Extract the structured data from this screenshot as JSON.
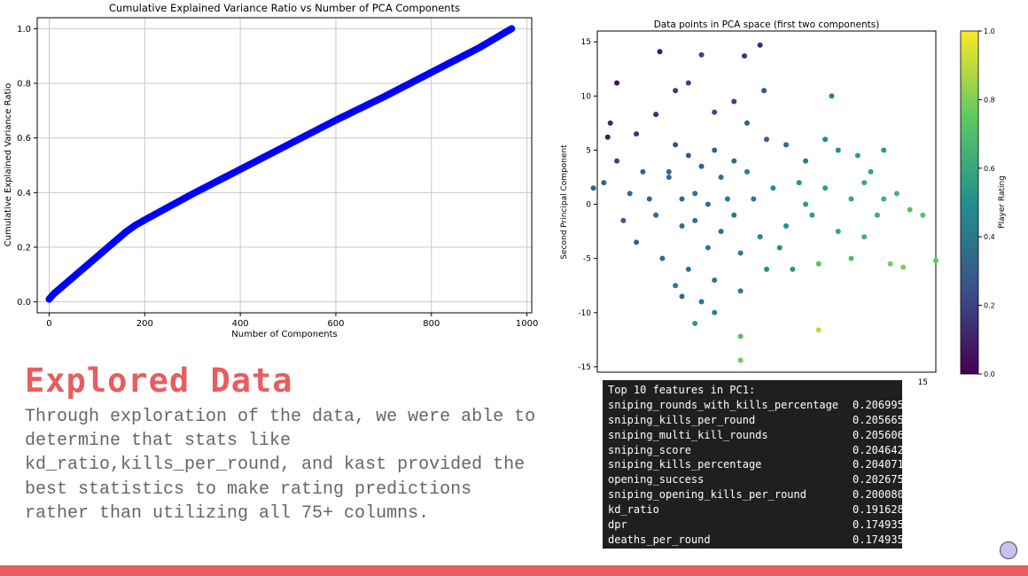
{
  "chart_data": [
    {
      "type": "line",
      "title": "Cumulative Explained Variance Ratio vs Number of PCA Components",
      "xlabel": "Number of Components",
      "ylabel": "Cumulative Explained Variance Ratio",
      "xlim": [
        -25,
        1010
      ],
      "ylim": [
        -0.04,
        1.04
      ],
      "xticks": [
        0,
        200,
        400,
        600,
        800,
        1000
      ],
      "yticks": [
        0.0,
        0.2,
        0.4,
        0.6,
        0.8,
        1.0
      ],
      "x": [
        0,
        5,
        10,
        20,
        40,
        60,
        80,
        100,
        120,
        140,
        160,
        180,
        200,
        300,
        400,
        500,
        600,
        700,
        800,
        900,
        968
      ],
      "y": [
        0.01,
        0.02,
        0.03,
        0.045,
        0.075,
        0.105,
        0.135,
        0.165,
        0.195,
        0.225,
        0.255,
        0.28,
        0.3,
        0.395,
        0.485,
        0.575,
        0.665,
        0.75,
        0.84,
        0.93,
        1.0
      ],
      "color": "#0000ff",
      "grid": true
    },
    {
      "type": "scatter",
      "title": "Data points in PCA space (first two components)",
      "xlabel": "",
      "ylabel": "Second Principal Component",
      "xlim": [
        -10,
        16
      ],
      "ylim": [
        -15.5,
        16
      ],
      "xticks": [
        15
      ],
      "yticks": [
        -15,
        -10,
        -5,
        0,
        5,
        10,
        15
      ],
      "colorbar": {
        "label": "Player Rating",
        "ticks": [
          0.0,
          0.2,
          0.4,
          0.6,
          0.8,
          1.0
        ],
        "colormap": "viridis"
      },
      "points": [
        [
          -8.5,
          11.2,
          0.05
        ],
        [
          -5.2,
          14.1,
          0.06
        ],
        [
          1.3,
          13.7,
          0.15
        ],
        [
          2.5,
          14.7,
          0.12
        ],
        [
          -9.0,
          7.5,
          0.1
        ],
        [
          -9.2,
          6.2,
          0.08
        ],
        [
          -5.5,
          8.3,
          0.12
        ],
        [
          -4.0,
          10.5,
          0.18
        ],
        [
          -3.0,
          11.2,
          0.2
        ],
        [
          -1.0,
          8.5,
          0.22
        ],
        [
          0.5,
          9.5,
          0.2
        ],
        [
          2.8,
          10.5,
          0.25
        ],
        [
          1.5,
          7.5,
          0.28
        ],
        [
          3.0,
          6.0,
          0.3
        ],
        [
          4.5,
          5.5,
          0.35
        ],
        [
          6.0,
          4.0,
          0.4
        ],
        [
          7.5,
          6.0,
          0.45
        ],
        [
          8.5,
          5.0,
          0.5
        ],
        [
          10.0,
          4.5,
          0.55
        ],
        [
          11.0,
          3.0,
          0.58
        ],
        [
          13.0,
          1.0,
          0.65
        ],
        [
          14.0,
          -0.5,
          0.7
        ],
        [
          15.0,
          -1.0,
          0.72
        ],
        [
          16.0,
          -5.2,
          0.75
        ],
        [
          12.5,
          -5.5,
          0.78
        ],
        [
          13.5,
          -5.8,
          0.8
        ],
        [
          9.5,
          -5.0,
          0.7
        ],
        [
          7.0,
          -5.5,
          0.72
        ],
        [
          10.5,
          -3.0,
          0.65
        ],
        [
          8.0,
          10.0,
          0.45
        ],
        [
          12.0,
          5.0,
          0.55
        ],
        [
          -10.3,
          1.5,
          0.3
        ],
        [
          -9.5,
          2.0,
          0.32
        ],
        [
          -8.0,
          -1.5,
          0.28
        ],
        [
          -7.0,
          -3.5,
          0.3
        ],
        [
          -6.0,
          0.5,
          0.33
        ],
        [
          -4.5,
          2.5,
          0.35
        ],
        [
          -3.5,
          -2.0,
          0.37
        ],
        [
          -2.5,
          1.0,
          0.38
        ],
        [
          -1.5,
          -4.0,
          0.4
        ],
        [
          -0.5,
          2.5,
          0.38
        ],
        [
          0.5,
          -1.0,
          0.4
        ],
        [
          1.5,
          3.0,
          0.42
        ],
        [
          2.5,
          -3.0,
          0.45
        ],
        [
          3.5,
          1.5,
          0.48
        ],
        [
          4.5,
          -2.0,
          0.5
        ],
        [
          5.5,
          2.0,
          0.52
        ],
        [
          6.5,
          -1.0,
          0.55
        ],
        [
          7.5,
          1.5,
          0.56
        ],
        [
          8.5,
          -2.5,
          0.58
        ],
        [
          9.5,
          0.5,
          0.6
        ],
        [
          -5.0,
          -5.0,
          0.35
        ],
        [
          -3.0,
          -6.0,
          0.38
        ],
        [
          -1.0,
          -7.0,
          0.4
        ],
        [
          1.0,
          -8.0,
          0.42
        ],
        [
          -2.0,
          -9.0,
          0.4
        ],
        [
          -4.0,
          -7.5,
          0.38
        ],
        [
          -3.5,
          -8.5,
          0.35
        ],
        [
          3.0,
          -6.0,
          0.48
        ],
        [
          4.0,
          -4.0,
          0.5
        ],
        [
          5.0,
          -6.0,
          0.52
        ],
        [
          -2.0,
          3.5,
          0.3
        ],
        [
          -3.0,
          4.5,
          0.28
        ],
        [
          -4.0,
          5.5,
          0.25
        ],
        [
          -6.5,
          3.0,
          0.3
        ],
        [
          -7.5,
          1.0,
          0.32
        ],
        [
          -1.5,
          0.0,
          0.36
        ],
        [
          -0.5,
          -2.5,
          0.38
        ],
        [
          0.0,
          0.5,
          0.4
        ],
        [
          1.0,
          -4.5,
          0.42
        ],
        [
          -3.5,
          0.5,
          0.34
        ],
        [
          -2.5,
          -1.5,
          0.37
        ],
        [
          -5.5,
          -1.0,
          0.33
        ],
        [
          2.0,
          0.5,
          0.43
        ],
        [
          -4.5,
          3.0,
          0.32
        ],
        [
          -1.0,
          5.0,
          0.3
        ],
        [
          0.5,
          4.0,
          0.35
        ],
        [
          6.0,
          0.0,
          0.54
        ],
        [
          10.5,
          2.0,
          0.6
        ],
        [
          11.5,
          -1.0,
          0.62
        ],
        [
          12.0,
          0.5,
          0.64
        ],
        [
          -2.5,
          -11.0,
          0.55
        ],
        [
          1.0,
          -12.2,
          0.7
        ],
        [
          1.0,
          -14.4,
          0.78
        ],
        [
          7.0,
          -11.6,
          0.9
        ],
        [
          -1.0,
          -10.0,
          0.45
        ],
        [
          -8.5,
          4.0,
          0.2
        ],
        [
          -7.0,
          6.5,
          0.15
        ],
        [
          -2.0,
          13.8,
          0.2
        ]
      ]
    }
  ],
  "section": {
    "title": "Explored Data",
    "body": "Through exploration of the data, we were able to determine that stats like kd_ratio,kills_per_round, and kast provided the best statistics to make rating predictions rather than utilizing all 75+ columns."
  },
  "console": {
    "header": "Top 10 features in PC1:",
    "rows": [
      {
        "feature": "sniping_rounds_with_kills_percentage",
        "value": "0.206995"
      },
      {
        "feature": "sniping_kills_per_round",
        "value": "0.205665"
      },
      {
        "feature": "sniping_multi_kill_rounds",
        "value": "0.205606"
      },
      {
        "feature": "sniping_score",
        "value": "0.204642"
      },
      {
        "feature": "sniping_kills_percentage",
        "value": "0.204071"
      },
      {
        "feature": "opening_success",
        "value": "0.202675"
      },
      {
        "feature": "sniping_opening_kills_per_round",
        "value": "0.200080"
      },
      {
        "feature": "kd_ratio",
        "value": "0.191628"
      },
      {
        "feature": "dpr",
        "value": "0.174935"
      },
      {
        "feature": "deaths_per_round",
        "value": "0.174935"
      }
    ]
  },
  "colors": {
    "accent": "#e85d5f",
    "line": "#0000ff",
    "console_bg": "#1f1f1f",
    "button": "#c7c1ec"
  }
}
